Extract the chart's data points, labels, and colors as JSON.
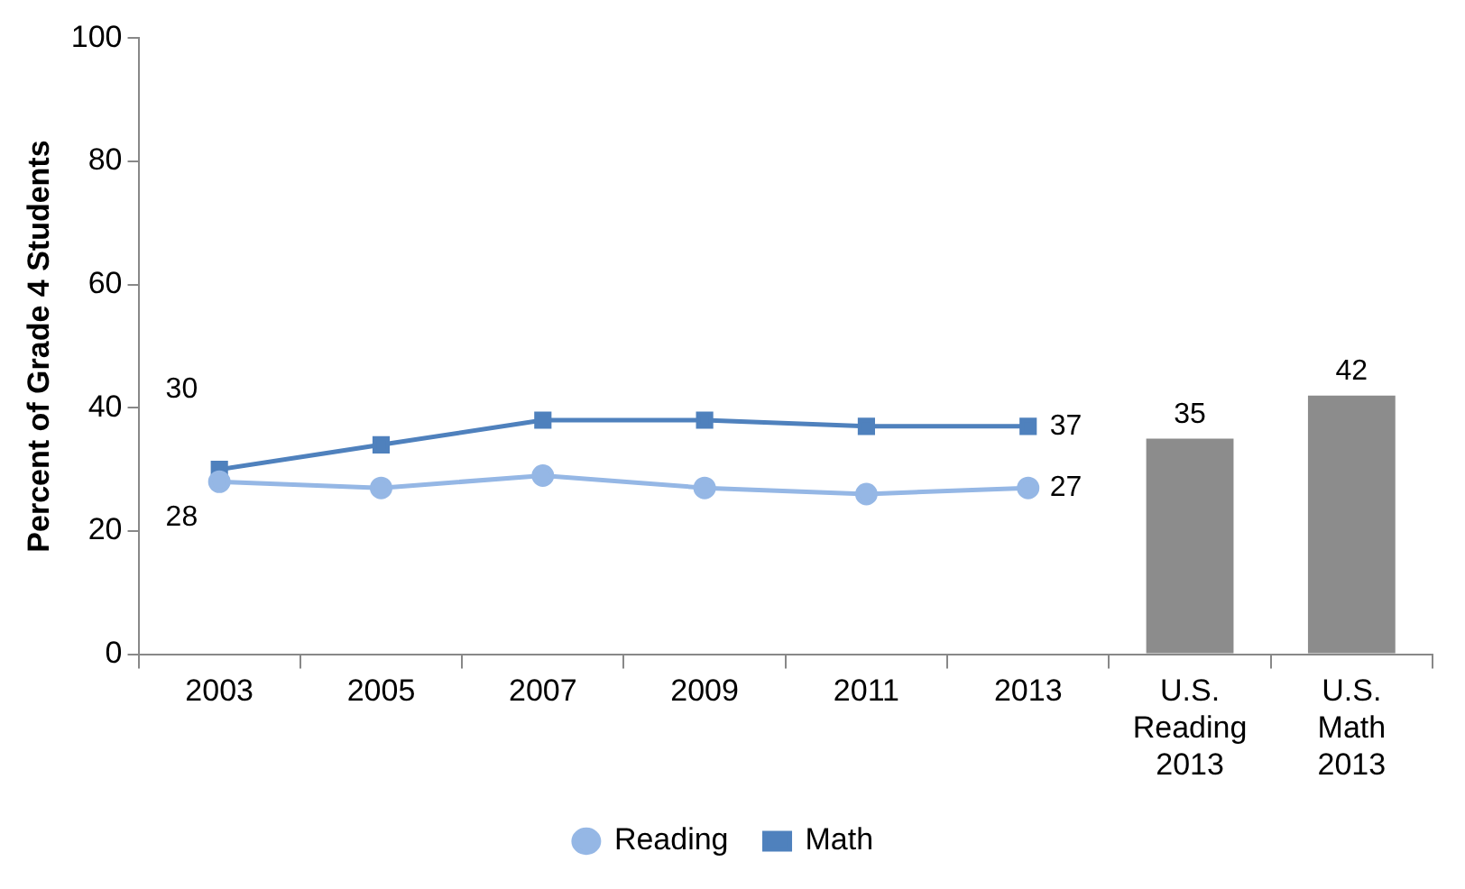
{
  "chart_data": {
    "type": "line",
    "ylabel": "Percent of Grade 4 Students",
    "categories": [
      "2003",
      "2005",
      "2007",
      "2009",
      "2011",
      "2013",
      "U.S.\nReading\n2013",
      "U.S.\nMath\n2013"
    ],
    "series": [
      {
        "name": "Reading",
        "color": "#95b7e5",
        "marker": "circle",
        "values": [
          28,
          27,
          29,
          27,
          26,
          27,
          null,
          null
        ],
        "value_labels": [
          "28",
          null,
          null,
          null,
          null,
          "27",
          null,
          null
        ]
      },
      {
        "name": "Math",
        "color": "#4f81bd",
        "marker": "square",
        "values": [
          30,
          34,
          38,
          38,
          37,
          37,
          null,
          null
        ],
        "value_labels": [
          "30",
          null,
          null,
          null,
          null,
          "37",
          null,
          null
        ]
      },
      {
        "type": "bar",
        "color": "#8c8c8c",
        "values": [
          null,
          null,
          null,
          null,
          null,
          null,
          35,
          42
        ],
        "value_labels": [
          null,
          null,
          null,
          null,
          null,
          null,
          "35",
          "42"
        ]
      }
    ],
    "ylim": [
      0,
      100
    ],
    "yticks": [
      0,
      20,
      40,
      60,
      80,
      100
    ],
    "grid": false,
    "legend": "bottom"
  }
}
